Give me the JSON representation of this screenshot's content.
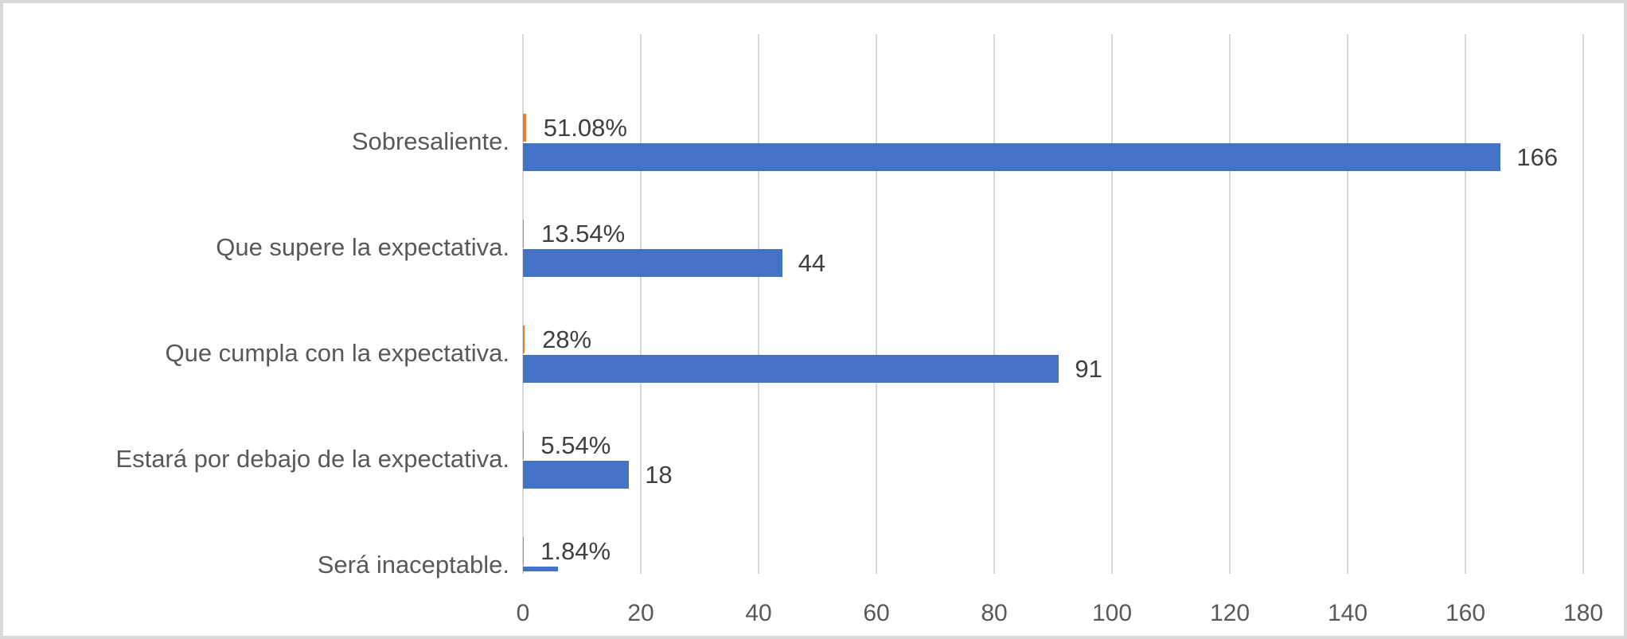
{
  "chart_data": {
    "type": "bar",
    "orientation": "horizontal",
    "title": "",
    "categories": [
      "Sobresaliente.",
      "Que supere la expectativa.",
      "Que cumpla con la expectativa.",
      "Estará por debajo de la expectativa.",
      "Será inaceptable."
    ],
    "series": [
      {
        "id": "count",
        "color": "#4472C4",
        "values": [
          166,
          44,
          91,
          18,
          6
        ],
        "data_labels": [
          "166",
          "44",
          "91",
          "18",
          ""
        ]
      },
      {
        "id": "percent",
        "color": "#ED7D31",
        "unit": "percent-of-total",
        "values": [
          51.08,
          13.54,
          28,
          5.54,
          1.84
        ],
        "data_labels": [
          "51.08%",
          "13.54%",
          "28%",
          "5.54%",
          "1.84%"
        ]
      }
    ],
    "x_axis": {
      "min": 0,
      "max": 180,
      "step": 20,
      "tick_labels": [
        "0",
        "20",
        "40",
        "60",
        "80",
        "100",
        "120",
        "140",
        "160",
        "180"
      ]
    },
    "xlabel": "",
    "ylabel": "",
    "grid": true,
    "legend_position": "none"
  },
  "styles": {
    "bar_blue": "#4472C4",
    "bar_orange": "#ED7D31",
    "gridline": "#D9D9D9",
    "chart_border": "#D9D9D9",
    "axis_text": "#595959",
    "category_text": "#595959",
    "data_label_text": "#404040",
    "background": "#FFFFFF"
  }
}
